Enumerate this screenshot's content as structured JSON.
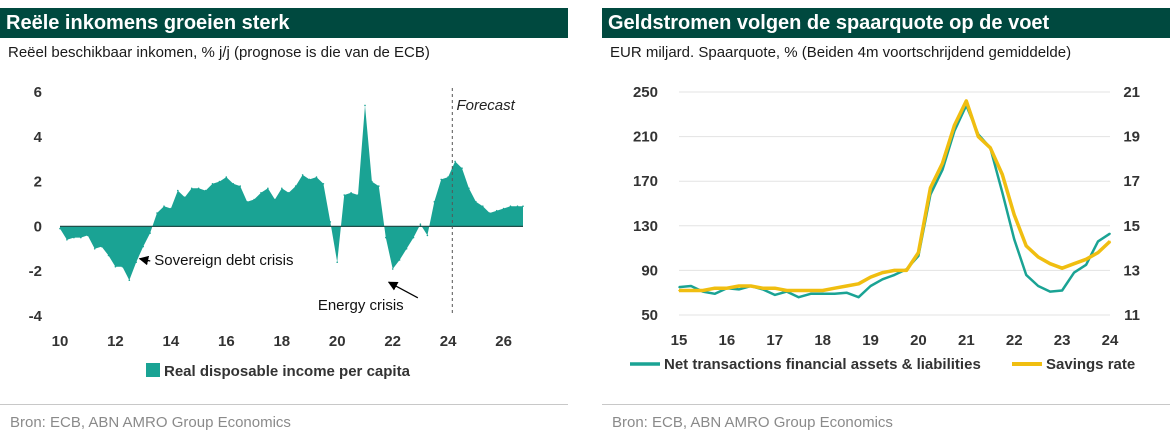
{
  "colors": {
    "title_bg": "#00493f",
    "teal": "#1aa394",
    "gold": "#f0be10",
    "grid": "#e3e3e3",
    "axis_text": "#333333"
  },
  "left": {
    "title": "Reële inkomens groeien sterk",
    "subtitle": "Reëel beschikbaar inkomen, % j/j (prognose is die van de ECB)",
    "source": "Bron: ECB, ABN AMRO Group Economics"
  },
  "right": {
    "title": "Geldstromen volgen de spaarquote op de voet",
    "subtitle": "EUR miljard. Spaarquote, % (Beiden 4m voortschrijdend gemiddelde)",
    "source": "Bron: ECB, ABN AMRO Group Economics"
  },
  "chart_data": [
    {
      "type": "area",
      "xlim": [
        10,
        26.7
      ],
      "ylim": [
        -4,
        6
      ],
      "x_ticks": [
        10,
        12,
        14,
        16,
        18,
        20,
        22,
        24,
        26
      ],
      "y_ticks": [
        -4,
        -2,
        0,
        2,
        4,
        6
      ],
      "grid": false,
      "legend": "bottom-center",
      "series": [
        {
          "name": "Real disposable income per capita",
          "color": "#1aa394",
          "x": [
            10,
            10.25,
            10.5,
            10.75,
            11,
            11.25,
            11.5,
            11.75,
            12,
            12.25,
            12.5,
            12.75,
            13,
            13.25,
            13.5,
            13.75,
            14,
            14.25,
            14.5,
            14.75,
            15,
            15.25,
            15.5,
            15.75,
            16,
            16.25,
            16.5,
            16.75,
            17,
            17.25,
            17.5,
            17.75,
            18,
            18.25,
            18.5,
            18.75,
            19,
            19.25,
            19.5,
            19.75,
            20,
            20.25,
            20.5,
            20.75,
            21,
            21.25,
            21.5,
            21.75,
            22,
            22.25,
            22.5,
            22.75,
            23,
            23.25,
            23.5,
            23.75,
            24,
            24.25,
            24.5,
            24.75,
            25,
            25.25,
            25.5,
            25.75,
            26,
            26.25,
            26.5,
            26.7
          ],
          "y": [
            -0.1,
            -0.6,
            -0.5,
            -0.5,
            -0.4,
            -1.0,
            -0.9,
            -1.3,
            -1.8,
            -1.8,
            -2.4,
            -1.6,
            -0.9,
            -0.3,
            0.6,
            0.9,
            0.8,
            1.6,
            1.3,
            1.7,
            1.7,
            1.6,
            1.9,
            2.0,
            2.2,
            1.9,
            1.8,
            1.1,
            1.2,
            1.5,
            1.7,
            1.2,
            1.7,
            1.5,
            1.8,
            2.3,
            2.1,
            2.2,
            1.9,
            0.2,
            -1.6,
            1.4,
            1.5,
            1.4,
            5.4,
            2.0,
            1.8,
            -0.5,
            -1.9,
            -1.5,
            -1.0,
            -0.5,
            0.1,
            -0.4,
            1.1,
            2.1,
            2.2,
            2.9,
            2.6,
            1.7,
            1.1,
            0.9,
            0.6,
            0.7,
            0.8,
            0.9,
            0.9,
            0.9
          ]
        }
      ],
      "forecast_x": 24.15,
      "annotations": [
        {
          "text": "Forecast",
          "x": 24.3,
          "y": 5.2
        },
        {
          "text": "Sovereign debt crisis",
          "x": 13.4,
          "y": -1.5,
          "arrow_to": [
            12.8,
            -1.4
          ]
        },
        {
          "text": "Energy crisis",
          "x": 19.3,
          "y": -3.5,
          "arrow_to": [
            22.0,
            -2.4
          ]
        }
      ]
    },
    {
      "type": "line",
      "xlim": [
        15,
        24
      ],
      "x_ticks": [
        15,
        16,
        17,
        18,
        19,
        20,
        21,
        22,
        23,
        24
      ],
      "ylim": [
        50,
        250
      ],
      "y_ticks": [
        50,
        90,
        130,
        170,
        210,
        250
      ],
      "y2lim": [
        11,
        21
      ],
      "y2_ticks": [
        11,
        13,
        15,
        17,
        19,
        21
      ],
      "grid": true,
      "legend": "bottom",
      "series": [
        {
          "name": "Net transactions financial assets & liabilities",
          "axis": "left",
          "color": "#1aa394",
          "x": [
            15,
            15.25,
            15.5,
            15.75,
            16,
            16.25,
            16.5,
            16.75,
            17,
            17.25,
            17.5,
            17.75,
            18,
            18.25,
            18.5,
            18.75,
            19,
            19.25,
            19.5,
            19.75,
            20,
            20.25,
            20.5,
            20.75,
            21,
            21.25,
            21.5,
            21.75,
            22,
            22.25,
            22.5,
            22.75,
            23,
            23.25,
            23.5,
            23.75,
            24
          ],
          "y": [
            75,
            76,
            71,
            69,
            74,
            73,
            76,
            73,
            68,
            71,
            66,
            69,
            69,
            69,
            70,
            66,
            76,
            82,
            86,
            91,
            103,
            158,
            180,
            215,
            238,
            212,
            200,
            160,
            118,
            86,
            76,
            71,
            72,
            88,
            95,
            116,
            123
          ]
        },
        {
          "name": "Savings rate",
          "axis": "right",
          "color": "#f0be10",
          "x": [
            15,
            15.25,
            15.5,
            15.75,
            16,
            16.25,
            16.5,
            16.75,
            17,
            17.25,
            17.5,
            17.75,
            18,
            18.25,
            18.5,
            18.75,
            19,
            19.25,
            19.5,
            19.75,
            20,
            20.25,
            20.5,
            20.75,
            21,
            21.25,
            21.5,
            21.75,
            22,
            22.25,
            22.5,
            22.75,
            23,
            23.25,
            23.5,
            23.75,
            24
          ],
          "y": [
            12.1,
            12.1,
            12.1,
            12.2,
            12.2,
            12.3,
            12.3,
            12.2,
            12.2,
            12.1,
            12.1,
            12.1,
            12.1,
            12.2,
            12.3,
            12.4,
            12.7,
            12.9,
            13.0,
            13.0,
            13.8,
            16.7,
            17.8,
            19.5,
            20.6,
            19.0,
            18.5,
            17.3,
            15.5,
            14.1,
            13.6,
            13.3,
            13.1,
            13.3,
            13.5,
            13.8,
            14.3
          ]
        }
      ]
    }
  ]
}
